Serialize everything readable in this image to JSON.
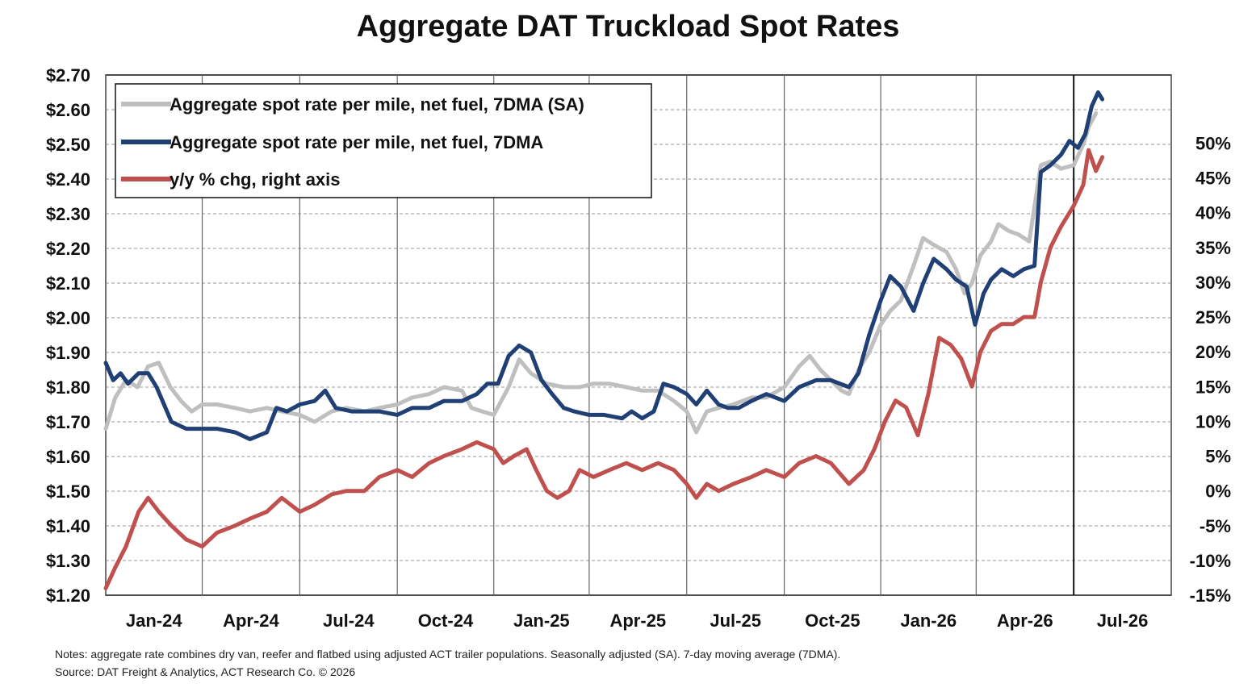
{
  "chart_data": {
    "type": "line",
    "title": "Aggregate DAT Truckload Spot Rates",
    "left_axis": {
      "ylim": [
        1.2,
        2.7
      ],
      "ticks": [
        1.2,
        1.3,
        1.4,
        1.5,
        1.6,
        1.7,
        1.8,
        1.9,
        2.0,
        2.1,
        2.2,
        2.3,
        2.4,
        2.5,
        2.6,
        2.7
      ],
      "tick_labels": [
        "$1.20",
        "$1.30",
        "$1.40",
        "$1.50",
        "$1.60",
        "$1.70",
        "$1.80",
        "$1.90",
        "$2.00",
        "$2.10",
        "$2.20",
        "$2.30",
        "$2.40",
        "$2.50",
        "$2.60",
        "$2.70"
      ]
    },
    "right_axis": {
      "ylim": [
        -15,
        59.8
      ],
      "ticks": [
        -15,
        -10,
        -5,
        0,
        5,
        10,
        15,
        20,
        25,
        30,
        35,
        40,
        45,
        50
      ],
      "tick_labels": [
        "-15%",
        "-10%",
        "-5%",
        "0%",
        "5%",
        "10%",
        "15%",
        "20%",
        "25%",
        "30%",
        "35%",
        "40%",
        "45%",
        "50%"
      ]
    },
    "x_axis": {
      "start": "2023-12-01",
      "end": "2026-09-01",
      "tick_labels": [
        "Jan-24",
        "Apr-24",
        "Jul-24",
        "Oct-24",
        "Jan-25",
        "Apr-25",
        "Jul-25",
        "Oct-25",
        "Jan-26",
        "Apr-26",
        "Jul-26"
      ],
      "gridline_dates": [
        "2023-12-01",
        "2024-03-01",
        "2024-06-01",
        "2024-09-01",
        "2024-12-01",
        "2025-03-01",
        "2025-06-01",
        "2025-09-01",
        "2025-12-01",
        "2026-03-01",
        "2026-06-01",
        "2026-09-01"
      ]
    },
    "grid": "dashed horizontal, solid vertical",
    "legend_placement": "top-left",
    "series": [
      {
        "name": "Aggregate spot rate per mile, net fuel, 7DMA (SA)",
        "axis": "left",
        "color": "#BFBFBF",
        "points": [
          [
            "2023-12-01",
            1.68
          ],
          [
            "2023-12-10",
            1.77
          ],
          [
            "2023-12-20",
            1.82
          ],
          [
            "2023-12-31",
            1.8
          ],
          [
            "2024-01-10",
            1.86
          ],
          [
            "2024-01-20",
            1.87
          ],
          [
            "2024-01-31",
            1.8
          ],
          [
            "2024-02-10",
            1.76
          ],
          [
            "2024-02-20",
            1.73
          ],
          [
            "2024-03-01",
            1.75
          ],
          [
            "2024-03-15",
            1.75
          ],
          [
            "2024-04-01",
            1.74
          ],
          [
            "2024-04-15",
            1.73
          ],
          [
            "2024-05-01",
            1.74
          ],
          [
            "2024-05-15",
            1.73
          ],
          [
            "2024-06-01",
            1.72
          ],
          [
            "2024-06-15",
            1.7
          ],
          [
            "2024-07-01",
            1.73
          ],
          [
            "2024-07-15",
            1.74
          ],
          [
            "2024-08-01",
            1.73
          ],
          [
            "2024-08-15",
            1.74
          ],
          [
            "2024-09-01",
            1.75
          ],
          [
            "2024-09-15",
            1.77
          ],
          [
            "2024-10-01",
            1.78
          ],
          [
            "2024-10-15",
            1.8
          ],
          [
            "2024-11-01",
            1.79
          ],
          [
            "2024-11-10",
            1.74
          ],
          [
            "2024-11-20",
            1.73
          ],
          [
            "2024-12-01",
            1.72
          ],
          [
            "2024-12-15",
            1.8
          ],
          [
            "2024-12-25",
            1.88
          ],
          [
            "2025-01-05",
            1.84
          ],
          [
            "2025-01-20",
            1.81
          ],
          [
            "2025-02-05",
            1.8
          ],
          [
            "2025-02-20",
            1.8
          ],
          [
            "2025-03-05",
            1.81
          ],
          [
            "2025-03-20",
            1.81
          ],
          [
            "2025-04-05",
            1.8
          ],
          [
            "2025-04-20",
            1.79
          ],
          [
            "2025-05-05",
            1.79
          ],
          [
            "2025-05-20",
            1.76
          ],
          [
            "2025-06-01",
            1.73
          ],
          [
            "2025-06-10",
            1.67
          ],
          [
            "2025-06-20",
            1.73
          ],
          [
            "2025-07-01",
            1.74
          ],
          [
            "2025-07-15",
            1.75
          ],
          [
            "2025-08-01",
            1.77
          ],
          [
            "2025-08-15",
            1.77
          ],
          [
            "2025-09-01",
            1.8
          ],
          [
            "2025-09-15",
            1.86
          ],
          [
            "2025-09-25",
            1.89
          ],
          [
            "2025-10-05",
            1.85
          ],
          [
            "2025-10-15",
            1.82
          ],
          [
            "2025-10-25",
            1.79
          ],
          [
            "2025-11-01",
            1.78
          ],
          [
            "2025-11-10",
            1.85
          ],
          [
            "2025-11-20",
            1.9
          ],
          [
            "2025-12-01",
            1.98
          ],
          [
            "2025-12-10",
            2.02
          ],
          [
            "2025-12-20",
            2.05
          ],
          [
            "2026-01-01",
            2.15
          ],
          [
            "2026-01-10",
            2.23
          ],
          [
            "2026-01-20",
            2.21
          ],
          [
            "2026-02-01",
            2.19
          ],
          [
            "2026-02-10",
            2.14
          ],
          [
            "2026-02-18",
            2.07
          ],
          [
            "2026-02-25",
            2.1
          ],
          [
            "2026-03-05",
            2.18
          ],
          [
            "2026-03-15",
            2.22
          ],
          [
            "2026-03-22",
            2.27
          ],
          [
            "2026-04-01",
            2.25
          ],
          [
            "2026-04-10",
            2.24
          ],
          [
            "2026-04-20",
            2.22
          ],
          [
            "2026-05-01",
            2.44
          ],
          [
            "2026-05-10",
            2.45
          ],
          [
            "2026-05-20",
            2.43
          ],
          [
            "2026-06-01",
            2.44
          ],
          [
            "2026-06-10",
            2.5
          ],
          [
            "2026-06-15",
            2.55
          ],
          [
            "2026-06-22",
            2.59
          ]
        ]
      },
      {
        "name": "Aggregate spot rate per mile, net fuel, 7DMA",
        "axis": "left",
        "color": "#1F3F75",
        "points": [
          [
            "2023-12-01",
            1.87
          ],
          [
            "2023-12-08",
            1.82
          ],
          [
            "2023-12-15",
            1.84
          ],
          [
            "2023-12-22",
            1.81
          ],
          [
            "2024-01-01",
            1.84
          ],
          [
            "2024-01-10",
            1.84
          ],
          [
            "2024-01-18",
            1.8
          ],
          [
            "2024-01-25",
            1.75
          ],
          [
            "2024-02-01",
            1.7
          ],
          [
            "2024-02-15",
            1.68
          ],
          [
            "2024-03-01",
            1.68
          ],
          [
            "2024-03-15",
            1.68
          ],
          [
            "2024-04-01",
            1.67
          ],
          [
            "2024-04-15",
            1.65
          ],
          [
            "2024-05-01",
            1.67
          ],
          [
            "2024-05-10",
            1.74
          ],
          [
            "2024-05-20",
            1.73
          ],
          [
            "2024-06-01",
            1.75
          ],
          [
            "2024-06-15",
            1.76
          ],
          [
            "2024-06-25",
            1.79
          ],
          [
            "2024-07-05",
            1.74
          ],
          [
            "2024-07-20",
            1.73
          ],
          [
            "2024-08-01",
            1.73
          ],
          [
            "2024-08-15",
            1.73
          ],
          [
            "2024-09-01",
            1.72
          ],
          [
            "2024-09-15",
            1.74
          ],
          [
            "2024-10-01",
            1.74
          ],
          [
            "2024-10-15",
            1.76
          ],
          [
            "2024-11-01",
            1.76
          ],
          [
            "2024-11-15",
            1.78
          ],
          [
            "2024-11-25",
            1.81
          ],
          [
            "2024-12-05",
            1.81
          ],
          [
            "2024-12-15",
            1.89
          ],
          [
            "2024-12-25",
            1.92
          ],
          [
            "2025-01-05",
            1.9
          ],
          [
            "2025-01-15",
            1.82
          ],
          [
            "2025-01-25",
            1.78
          ],
          [
            "2025-02-05",
            1.74
          ],
          [
            "2025-02-15",
            1.73
          ],
          [
            "2025-03-01",
            1.72
          ],
          [
            "2025-03-15",
            1.72
          ],
          [
            "2025-04-01",
            1.71
          ],
          [
            "2025-04-10",
            1.73
          ],
          [
            "2025-04-20",
            1.71
          ],
          [
            "2025-05-01",
            1.73
          ],
          [
            "2025-05-10",
            1.81
          ],
          [
            "2025-05-20",
            1.8
          ],
          [
            "2025-06-01",
            1.78
          ],
          [
            "2025-06-10",
            1.75
          ],
          [
            "2025-06-20",
            1.79
          ],
          [
            "2025-07-01",
            1.75
          ],
          [
            "2025-07-10",
            1.74
          ],
          [
            "2025-07-20",
            1.74
          ],
          [
            "2025-08-01",
            1.76
          ],
          [
            "2025-08-15",
            1.78
          ],
          [
            "2025-09-01",
            1.76
          ],
          [
            "2025-09-15",
            1.8
          ],
          [
            "2025-10-01",
            1.82
          ],
          [
            "2025-10-15",
            1.82
          ],
          [
            "2025-11-01",
            1.8
          ],
          [
            "2025-11-10",
            1.84
          ],
          [
            "2025-11-20",
            1.95
          ],
          [
            "2025-12-01",
            2.05
          ],
          [
            "2025-12-10",
            2.12
          ],
          [
            "2025-12-20",
            2.09
          ],
          [
            "2026-01-01",
            2.02
          ],
          [
            "2026-01-10",
            2.1
          ],
          [
            "2026-01-20",
            2.17
          ],
          [
            "2026-02-01",
            2.14
          ],
          [
            "2026-02-10",
            2.11
          ],
          [
            "2026-02-20",
            2.09
          ],
          [
            "2026-02-28",
            1.98
          ],
          [
            "2026-03-08",
            2.07
          ],
          [
            "2026-03-15",
            2.11
          ],
          [
            "2026-03-25",
            2.14
          ],
          [
            "2026-04-05",
            2.12
          ],
          [
            "2026-04-15",
            2.14
          ],
          [
            "2026-04-25",
            2.15
          ],
          [
            "2026-05-01",
            2.42
          ],
          [
            "2026-05-10",
            2.44
          ],
          [
            "2026-05-20",
            2.47
          ],
          [
            "2026-05-28",
            2.51
          ],
          [
            "2026-06-05",
            2.49
          ],
          [
            "2026-06-12",
            2.53
          ],
          [
            "2026-06-18",
            2.61
          ],
          [
            "2026-06-24",
            2.65
          ],
          [
            "2026-06-28",
            2.63
          ]
        ]
      },
      {
        "name": "y/y % chg, right axis",
        "axis": "right",
        "color": "#C0504D",
        "points": [
          [
            "2023-12-01",
            -14
          ],
          [
            "2023-12-10",
            -11
          ],
          [
            "2023-12-20",
            -8
          ],
          [
            "2024-01-01",
            -3
          ],
          [
            "2024-01-10",
            -1
          ],
          [
            "2024-01-20",
            -3
          ],
          [
            "2024-02-01",
            -5
          ],
          [
            "2024-02-15",
            -7
          ],
          [
            "2024-03-01",
            -8
          ],
          [
            "2024-03-15",
            -6
          ],
          [
            "2024-04-01",
            -5
          ],
          [
            "2024-04-15",
            -4
          ],
          [
            "2024-05-01",
            -3
          ],
          [
            "2024-05-15",
            -1
          ],
          [
            "2024-06-01",
            -3
          ],
          [
            "2024-06-15",
            -2
          ],
          [
            "2024-07-01",
            -0.5
          ],
          [
            "2024-07-15",
            0
          ],
          [
            "2024-08-01",
            0
          ],
          [
            "2024-08-15",
            2
          ],
          [
            "2024-09-01",
            3
          ],
          [
            "2024-09-15",
            2
          ],
          [
            "2024-10-01",
            4
          ],
          [
            "2024-10-15",
            5
          ],
          [
            "2024-11-01",
            6
          ],
          [
            "2024-11-15",
            7
          ],
          [
            "2024-12-01",
            6
          ],
          [
            "2024-12-10",
            4
          ],
          [
            "2024-12-20",
            5
          ],
          [
            "2025-01-01",
            6
          ],
          [
            "2025-01-10",
            3
          ],
          [
            "2025-01-20",
            0
          ],
          [
            "2025-01-30",
            -1
          ],
          [
            "2025-02-10",
            0
          ],
          [
            "2025-02-20",
            3
          ],
          [
            "2025-03-05",
            2
          ],
          [
            "2025-03-20",
            3
          ],
          [
            "2025-04-05",
            4
          ],
          [
            "2025-04-20",
            3
          ],
          [
            "2025-05-05",
            4
          ],
          [
            "2025-05-20",
            3
          ],
          [
            "2025-06-01",
            1
          ],
          [
            "2025-06-10",
            -1
          ],
          [
            "2025-06-20",
            1
          ],
          [
            "2025-07-01",
            0
          ],
          [
            "2025-07-15",
            1
          ],
          [
            "2025-08-01",
            2
          ],
          [
            "2025-08-15",
            3
          ],
          [
            "2025-09-01",
            2
          ],
          [
            "2025-09-15",
            4
          ],
          [
            "2025-10-01",
            5
          ],
          [
            "2025-10-15",
            4
          ],
          [
            "2025-11-01",
            1
          ],
          [
            "2025-11-15",
            3
          ],
          [
            "2025-11-25",
            6
          ],
          [
            "2025-12-05",
            10
          ],
          [
            "2025-12-15",
            13
          ],
          [
            "2025-12-25",
            12
          ],
          [
            "2026-01-05",
            8
          ],
          [
            "2026-01-15",
            14
          ],
          [
            "2026-01-25",
            22
          ],
          [
            "2026-02-05",
            21
          ],
          [
            "2026-02-15",
            19
          ],
          [
            "2026-02-25",
            15
          ],
          [
            "2026-03-05",
            20
          ],
          [
            "2026-03-15",
            23
          ],
          [
            "2026-03-25",
            24
          ],
          [
            "2026-04-05",
            24
          ],
          [
            "2026-04-15",
            25
          ],
          [
            "2026-04-25",
            25
          ],
          [
            "2026-05-01",
            30
          ],
          [
            "2026-05-10",
            35
          ],
          [
            "2026-05-20",
            38
          ],
          [
            "2026-06-01",
            41
          ],
          [
            "2026-06-10",
            44
          ],
          [
            "2026-06-15",
            49
          ],
          [
            "2026-06-22",
            46
          ],
          [
            "2026-06-28",
            48
          ]
        ]
      }
    ]
  },
  "legend": {
    "items": [
      "Aggregate spot rate per mile, net fuel, 7DMA (SA)",
      "Aggregate spot rate per mile, net fuel, 7DMA",
      "y/y % chg, right axis"
    ]
  },
  "notes": {
    "line1": "Notes: aggregate rate combines dry van, reefer and flatbed using adjusted ACT trailer populations. Seasonally adjusted (SA). 7-day moving average (7DMA).",
    "line2": "Source: DAT Freight & Analytics, ACT Research Co. © 2026"
  }
}
